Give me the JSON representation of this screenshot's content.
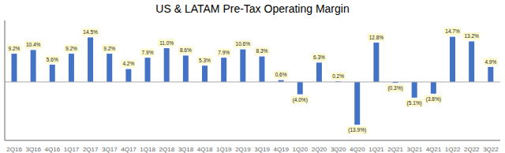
{
  "chart_data": {
    "type": "bar",
    "title": "US & LATAM Pre-Tax Operating Margin",
    "categories": [
      "2Q16",
      "3Q16",
      "4Q16",
      "1Q17",
      "2Q17",
      "3Q17",
      "4Q17",
      "1Q18",
      "2Q18",
      "3Q18",
      "4Q18",
      "1Q19",
      "2Q19",
      "3Q19",
      "4Q19",
      "1Q20",
      "2Q20",
      "3Q20",
      "4Q20",
      "1Q21",
      "2Q21",
      "3Q21",
      "4Q21",
      "1Q22",
      "2Q22",
      "3Q22"
    ],
    "values": [
      9.2,
      10.4,
      5.6,
      9.2,
      14.5,
      9.2,
      4.2,
      7.9,
      11.0,
      8.6,
      5.3,
      7.9,
      10.6,
      8.3,
      0.6,
      -4.0,
      6.3,
      0.2,
      -13.9,
      12.8,
      -0.3,
      -5.1,
      -3.8,
      14.7,
      13.2,
      4.9
    ],
    "value_labels": [
      "9.2%",
      "10.4%",
      "5.6%",
      "9.2%",
      "14.5%",
      "9.2%",
      "4.2%",
      "7.9%",
      "11.0%",
      "8.6%",
      "5.3%",
      "7.9%",
      "10.6%",
      "8.3%",
      "0.6%",
      "(4.0%)",
      "6.3%",
      "0.2%",
      "(13.9%)",
      "12.8%",
      "(0.3%)",
      "(5.1%)",
      "(3.8%)",
      "14.7%",
      "13.2%",
      "4.9%"
    ],
    "color": "#4472C4",
    "ylim": [
      -19,
      20
    ],
    "data_labels": true,
    "tick_labels": "x"
  }
}
